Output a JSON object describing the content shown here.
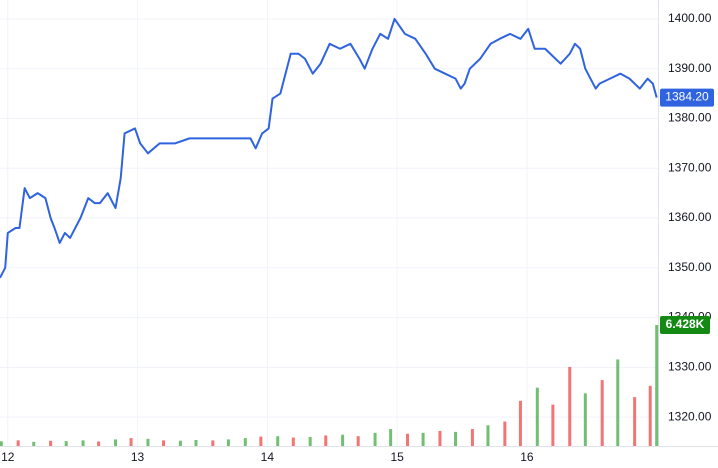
{
  "chart_data": {
    "type": "line",
    "line": {
      "color": "#2f63e0",
      "x": [
        11.94,
        11.98,
        12.0,
        12.06,
        12.09,
        12.13,
        12.17,
        12.23,
        12.29,
        12.33,
        12.36,
        12.4,
        12.44,
        12.48,
        12.56,
        12.62,
        12.67,
        12.71,
        12.77,
        12.83,
        12.87,
        12.9,
        12.98,
        13.02,
        13.08,
        13.17,
        13.29,
        13.4,
        13.56,
        13.71,
        13.87,
        13.91,
        13.96,
        14.01,
        14.04,
        14.1,
        14.18,
        14.24,
        14.29,
        14.35,
        14.41,
        14.48,
        14.56,
        14.64,
        14.71,
        14.75,
        14.81,
        14.87,
        14.93,
        14.98,
        15.06,
        15.14,
        15.22,
        15.29,
        15.37,
        15.45,
        15.49,
        15.52,
        15.56,
        15.64,
        15.72,
        15.79,
        15.87,
        15.95,
        16.01,
        16.06,
        16.14,
        16.22,
        16.26,
        16.33,
        16.37,
        16.41,
        16.45,
        16.49,
        16.53,
        16.56,
        16.64,
        16.72,
        16.79,
        16.87,
        16.93,
        16.97,
        17.0
      ],
      "values": [
        1348,
        1350,
        1357,
        1358,
        1358,
        1366,
        1364,
        1365,
        1364,
        1360,
        1358,
        1355,
        1357,
        1356,
        1360,
        1364,
        1363,
        1363,
        1365,
        1362,
        1368,
        1377,
        1378,
        1375,
        1373,
        1375,
        1375,
        1376,
        1376,
        1376,
        1376,
        1374,
        1377,
        1378,
        1384,
        1385,
        1393,
        1393,
        1392,
        1389,
        1391,
        1395,
        1394,
        1395,
        1392,
        1390,
        1394,
        1397,
        1396,
        1400,
        1397,
        1396,
        1393,
        1390,
        1389,
        1388,
        1386,
        1387,
        1390,
        1392,
        1395,
        1396,
        1397,
        1396,
        1398,
        1394,
        1394,
        1392,
        1391,
        1393,
        1395,
        1394,
        1390,
        1388,
        1386,
        1387,
        1388,
        1389,
        1388,
        1386,
        1388,
        1387,
        1384.2
      ]
    },
    "last_price": {
      "value": 1384.2,
      "label": "1384.20",
      "color": "#2f63e0"
    },
    "volume": {
      "axis": "y2",
      "x": [
        11.95,
        12.08,
        12.2,
        12.33,
        12.45,
        12.58,
        12.7,
        12.83,
        12.95,
        13.08,
        13.2,
        13.33,
        13.45,
        13.58,
        13.7,
        13.83,
        13.95,
        14.08,
        14.2,
        14.33,
        14.45,
        14.58,
        14.7,
        14.83,
        14.95,
        15.08,
        15.2,
        15.33,
        15.45,
        15.58,
        15.7,
        15.83,
        15.95,
        16.08,
        16.2,
        16.33,
        16.45,
        16.58,
        16.7,
        16.83,
        16.95,
        17.0
      ],
      "values": [
        250,
        300,
        220,
        280,
        260,
        300,
        240,
        350,
        420,
        380,
        300,
        280,
        320,
        300,
        350,
        420,
        500,
        520,
        450,
        480,
        560,
        600,
        520,
        700,
        900,
        650,
        700,
        800,
        750,
        900,
        1100,
        1300,
        2400,
        3100,
        2200,
        4200,
        2800,
        3500,
        4600,
        2600,
        3200,
        6428
      ],
      "value_labels": [
        null,
        null,
        null,
        null,
        null,
        null,
        null,
        null,
        null,
        null,
        null,
        null,
        null,
        null,
        null,
        null,
        null,
        null,
        null,
        null,
        null,
        null,
        null,
        null,
        null,
        null,
        null,
        null,
        null,
        null,
        null,
        null,
        null,
        null,
        null,
        null,
        null,
        null,
        null,
        null,
        null,
        "6.428K"
      ],
      "colors": [
        "#4caf50",
        "#ef5350",
        "#4caf50",
        "#ef5350",
        "#4caf50",
        "#4caf50",
        "#ef5350",
        "#4caf50",
        "#ef5350",
        "#4caf50",
        "#ef5350",
        "#4caf50",
        "#4caf50",
        "#ef5350",
        "#4caf50",
        "#4caf50",
        "#ef5350",
        "#4caf50",
        "#ef5350",
        "#4caf50",
        "#ef5350",
        "#4caf50",
        "#ef5350",
        "#4caf50",
        "#4caf50",
        "#ef5350",
        "#4caf50",
        "#ef5350",
        "#4caf50",
        "#ef5350",
        "#4caf50",
        "#ef5350",
        "#ef5350",
        "#4caf50",
        "#ef5350",
        "#ef5350",
        "#4caf50",
        "#ef5350",
        "#4caf50",
        "#ef5350",
        "#ef5350",
        "#4caf50"
      ],
      "label_color": "#148a14"
    },
    "xlim": [
      11.94,
      17.01
    ],
    "xticks": [
      12,
      13,
      14,
      15,
      16
    ],
    "ylim": [
      1314.2,
      1403.8
    ],
    "yticks": [
      {
        "value": 1320,
        "label": "1320.00"
      },
      {
        "value": 1330,
        "label": "1330.00"
      },
      {
        "value": 1340,
        "label": "1340.00"
      },
      {
        "value": 1350,
        "label": "1350.00"
      },
      {
        "value": 1360,
        "label": "1360.00"
      },
      {
        "value": 1370,
        "label": "1370.00"
      },
      {
        "value": 1380,
        "label": "1380.00"
      },
      {
        "value": 1390,
        "label": "1390.00"
      },
      {
        "value": 1400,
        "label": "1400.00"
      }
    ],
    "y2lim": [
      0,
      23700
    ],
    "grid": true
  }
}
